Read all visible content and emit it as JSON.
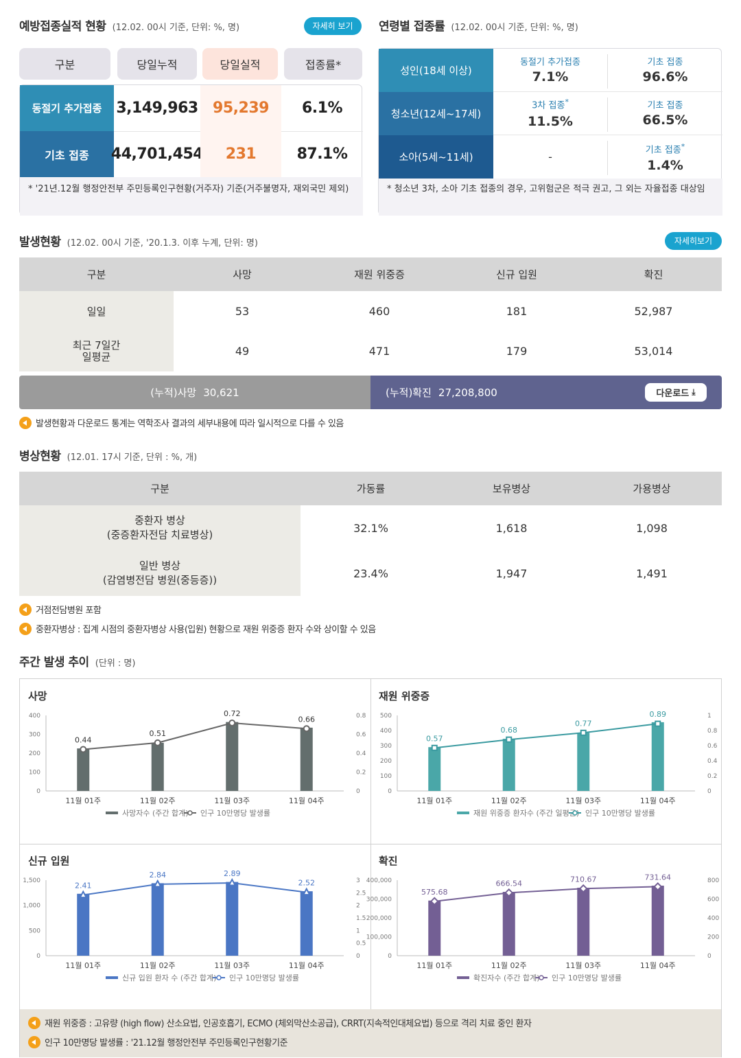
{
  "vaccination": {
    "title": "예방접종실적 현황",
    "subtitle": "(12.02. 00시 기준, 단위: %, 명)",
    "more_label": "자세히 보기",
    "headers": [
      "구분",
      "당일누적",
      "당일실적",
      "접종률*"
    ],
    "rows": [
      {
        "label": "동절기 추가접종",
        "cumulative": "3,149,963",
        "today": "95,239",
        "rate": "6.1%"
      },
      {
        "label": "기초 접종",
        "cumulative": "44,701,454",
        "today": "231",
        "rate": "87.1%"
      }
    ],
    "note": "* '21년.12월 행정안전부 주민등록인구현황(거주자) 기준(거주불명자, 재외국민 제외)"
  },
  "age_rate": {
    "title": "연령별 접종률",
    "subtitle": "(12.02. 00시 기준, 단위: %, 명)",
    "rows": [
      {
        "label": "성인(18세 이상)",
        "c1_label": "동절기 추가접종",
        "c1_mark": "",
        "c1_value": "7.1%",
        "c2_label": "기초 접종",
        "c2_mark": "",
        "c2_value": "96.6%"
      },
      {
        "label": "청소년(12세~17세)",
        "c1_label": "3차 접종",
        "c1_mark": "*",
        "c1_value": "11.5%",
        "c2_label": "기초 접종",
        "c2_mark": "",
        "c2_value": "66.5%"
      },
      {
        "label": "소아(5세~11세)",
        "c1_label": "",
        "c1_mark": "",
        "c1_value": "-",
        "c2_label": "기초 접종",
        "c2_mark": "*",
        "c2_value": "1.4%"
      }
    ],
    "note": "* 청소년 3차, 소아 기초 접종의 경우, 고위험군은 적극 권고, 그 외는 자율접종 대상임"
  },
  "occurrence": {
    "title": "발생현황",
    "subtitle": "(12.02. 00시 기준, '20.1.3. 이후 누계, 단위: 명)",
    "more_label": "자세히보기",
    "headers": [
      "구분",
      "사망",
      "재원 위중증",
      "신규 입원",
      "확진"
    ],
    "rows": [
      {
        "label": "일일",
        "death": "53",
        "severe": "460",
        "admit": "181",
        "confirmed": "52,987"
      },
      {
        "label": "최근 7일간\n일평균",
        "death": "49",
        "severe": "471",
        "admit": "179",
        "confirmed": "53,014"
      }
    ],
    "cum_death_label": "(누적)사망",
    "cum_death_value": "30,621",
    "cum_conf_label": "(누적)확진",
    "cum_conf_value": "27,208,800",
    "download_label": "다운로드",
    "note": "발생현황과 다운로드 통계는 역학조사 결과의 세부내용에 따라 일시적으로 다를 수 있음"
  },
  "beds": {
    "title": "병상현황",
    "subtitle": "(12.01. 17시 기준, 단위 : %, 개)",
    "headers": [
      "구분",
      "가동률",
      "보유병상",
      "가용병상"
    ],
    "rows": [
      {
        "label": "중환자 병상\n(중증환자전담 치료병상)",
        "rate": "32.1%",
        "owned": "1,618",
        "available": "1,098"
      },
      {
        "label": "일반 병상\n(감염병전담 병원(중등증))",
        "rate": "23.4%",
        "owned": "1,947",
        "available": "1,491"
      }
    ],
    "notes": [
      "거점전담병원 포함",
      "중환자병상 : 집계 시점의 중환자병상 사용(입원) 현황으로 재원 위중증 환자 수와 상이할 수 있음"
    ]
  },
  "weekly": {
    "title": "주간 발생 추이",
    "subtitle": "(단위 : 명)",
    "notes": [
      "재원 위중증 : 고유량 (high flow) 산소요법, 인공호흡기, ECMO (체외막산소공급), CRRT(지속적인대체요법) 등으로 격리 치료 중인 환자",
      "인구 10만명당 발생률 : '21.12월 행정안전부 주민등록인구현황기준"
    ]
  },
  "colors": {
    "death": "#636e6d",
    "severe": "#4aa7a8",
    "admit": "#4a76c4",
    "confirmed": "#735f94",
    "death_line": "#666666",
    "severe_line": "#3a9aa0",
    "admit_line": "#4a76c4",
    "confirmed_line": "#735f94"
  },
  "chart_data": [
    {
      "type": "bar",
      "title": "사망",
      "categories": [
        "11월 01주",
        "11월 02주",
        "11월 03주",
        "11월 04주"
      ],
      "series": [
        {
          "name": "사망자수 (주간 합계)",
          "values": [
            225,
            255,
            365,
            335
          ]
        },
        {
          "name": "인구 10만명당 발생률",
          "values": [
            0.44,
            0.51,
            0.72,
            0.66
          ]
        }
      ],
      "ylim": [
        0,
        400
      ],
      "y2lim": [
        0,
        0.8
      ],
      "yticks": [
        "0",
        "100",
        "200",
        "300",
        "400"
      ],
      "y2ticks": [
        "0",
        "0.2",
        "0.4",
        "0.6",
        "0.8"
      ],
      "labels": [
        "0.44",
        "0.51",
        "0.72",
        "0.66"
      ]
    },
    {
      "type": "bar",
      "title": "재원 위중증",
      "categories": [
        "11월 01주",
        "11월 02주",
        "11월 03주",
        "11월 04주"
      ],
      "series": [
        {
          "name": "재원 위중증 환자수 (주간 일평균)",
          "values": [
            290,
            345,
            385,
            455
          ]
        },
        {
          "name": "인구 10만명당 발생률",
          "values": [
            0.57,
            0.68,
            0.77,
            0.89
          ]
        }
      ],
      "ylim": [
        0,
        500
      ],
      "y2lim": [
        0,
        1
      ],
      "yticks": [
        "0",
        "100",
        "200",
        "300",
        "400",
        "500"
      ],
      "y2ticks": [
        "0",
        "0.2",
        "0.4",
        "0.6",
        "0.8",
        "1"
      ],
      "labels": [
        "0.57",
        "0.68",
        "0.77",
        "0.89"
      ]
    },
    {
      "type": "bar",
      "title": "신규 입원",
      "categories": [
        "11월 01주",
        "11월 02주",
        "11월 03주",
        "11월 04주"
      ],
      "series": [
        {
          "name": "신규 입원 환자 수 (주간 합계)",
          "values": [
            1230,
            1440,
            1465,
            1280
          ]
        },
        {
          "name": "인구 10만명당 발생률",
          "values": [
            2.41,
            2.84,
            2.89,
            2.52
          ]
        }
      ],
      "ylim": [
        0,
        1500
      ],
      "y2lim": [
        0,
        3
      ],
      "yticks": [
        "0",
        "500",
        "1,000",
        "1,500"
      ],
      "y2ticks": [
        "0",
        "0.5",
        "1",
        "1.5",
        "2",
        "2.5",
        "3"
      ],
      "labels": [
        "2.41",
        "2.84",
        "2.89",
        "2.52"
      ]
    },
    {
      "type": "bar",
      "title": "확진",
      "categories": [
        "11월 01주",
        "11월 02주",
        "11월 03주",
        "11월 04주"
      ],
      "series": [
        {
          "name": "확진자수 (주간 합계)",
          "values": [
            292000,
            338000,
            360000,
            371000
          ]
        },
        {
          "name": "인구 10만명당 발생률",
          "values": [
            575.68,
            666.54,
            710.67,
            731.64
          ]
        }
      ],
      "ylim": [
        0,
        400000
      ],
      "y2lim": [
        0,
        800
      ],
      "yticks": [
        "0",
        "100,000",
        "200,000",
        "300,000",
        "400,000"
      ],
      "y2ticks": [
        "0",
        "200",
        "400",
        "600",
        "800"
      ],
      "labels": [
        "575.68",
        "666.54",
        "710.67",
        "731.64"
      ]
    }
  ]
}
